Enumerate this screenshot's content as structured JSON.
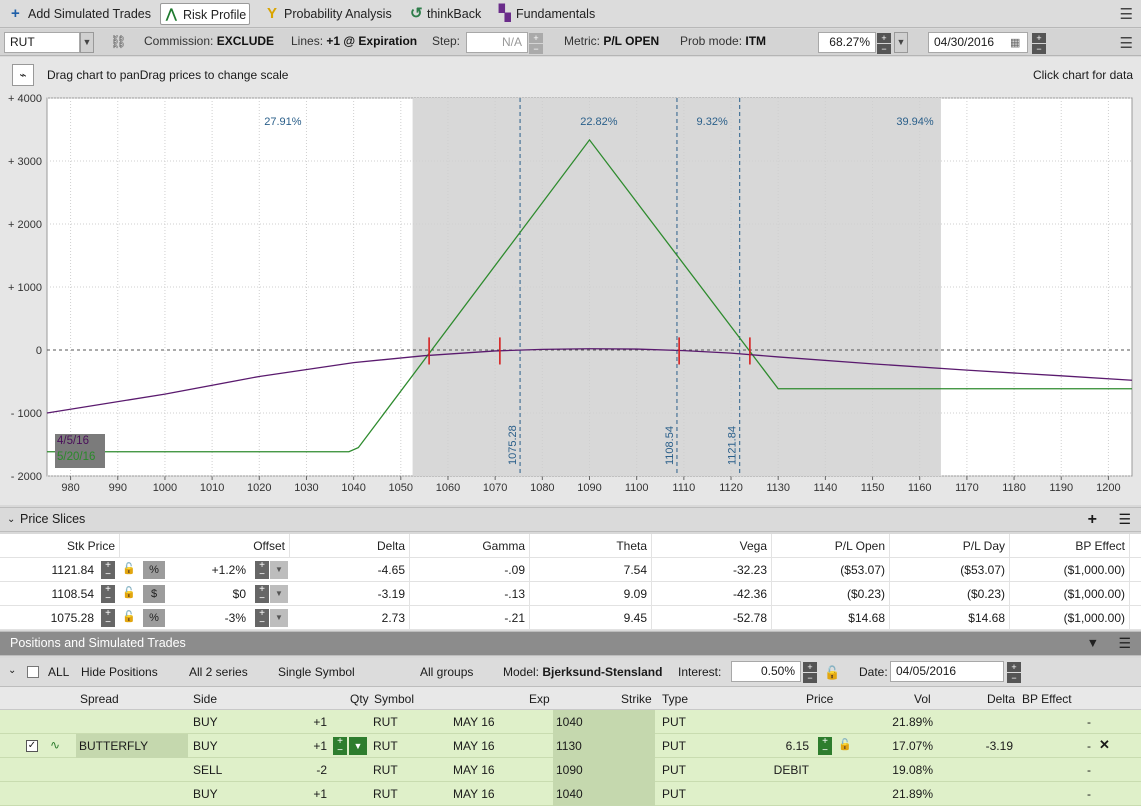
{
  "tabs": [
    {
      "label": "Add Simulated Trades",
      "icon": "plus-icon"
    },
    {
      "label": "Risk Profile",
      "icon": "risk-profile-icon",
      "active": true
    },
    {
      "label": "Probability Analysis",
      "icon": "probability-icon"
    },
    {
      "label": "thinkBack",
      "icon": "history-icon"
    },
    {
      "label": "Fundamentals",
      "icon": "fundamentals-icon"
    }
  ],
  "controls": {
    "symbol": "RUT",
    "commission_label": "Commission:",
    "commission_value": "EXCLUDE",
    "lines_label": "Lines:",
    "lines_value": "+1 @ Expiration",
    "step_label": "Step:",
    "step_value": "N/A",
    "metric_label": "Metric:",
    "metric_value": "P/L OPEN",
    "probmode_label": "Prob mode:",
    "probmode_value": "ITM",
    "percent_value": "68.27%",
    "date_value": "04/30/2016"
  },
  "chart_header": {
    "drag_text": "Drag chart to panDrag prices to change scale",
    "click_text": "Click chart for data"
  },
  "chart_data": {
    "type": "line",
    "xlim": [
      975,
      1205
    ],
    "ylim": [
      -2000,
      4000
    ],
    "x_ticks": [
      980,
      990,
      1000,
      1010,
      1020,
      1030,
      1040,
      1050,
      1060,
      1070,
      1080,
      1090,
      1100,
      1110,
      1120,
      1130,
      1140,
      1150,
      1160,
      1170,
      1180,
      1190,
      1200
    ],
    "y_ticks": [
      {
        "value": 4000,
        "label": "+ 4000"
      },
      {
        "value": 3000,
        "label": "+ 3000"
      },
      {
        "value": 2000,
        "label": "+ 2000"
      },
      {
        "value": 1000,
        "label": "+ 1000"
      },
      {
        "value": 0,
        "label": "0"
      },
      {
        "value": -1000,
        "label": "- 1000"
      },
      {
        "value": -2000,
        "label": "- 2000"
      }
    ],
    "shaded_range": [
      1052.5,
      1164.5
    ],
    "probabilities": [
      {
        "x": 1025,
        "label": "27.91%"
      },
      {
        "x": 1092,
        "label": "22.82%"
      },
      {
        "x": 1116,
        "label": "9.32%"
      },
      {
        "x": 1159,
        "label": "39.94%"
      }
    ],
    "vertical_lines": [
      {
        "x": 1075.28,
        "label": "1075.28"
      },
      {
        "x": 1108.54,
        "label": "1108.54"
      },
      {
        "x": 1121.84,
        "label": "1121.84"
      }
    ],
    "series": [
      {
        "name": "5/20/16",
        "color": "#2e8b2e",
        "points": [
          [
            975,
            -1615
          ],
          [
            1039,
            -1615
          ],
          [
            1041,
            -1550
          ],
          [
            1090,
            3335
          ],
          [
            1130,
            -615
          ],
          [
            1205,
            -615
          ]
        ]
      },
      {
        "name": "4/5/16",
        "color": "#5a1a6e",
        "points": [
          [
            975,
            -1000
          ],
          [
            1000,
            -700
          ],
          [
            1020,
            -420
          ],
          [
            1040,
            -200
          ],
          [
            1055,
            -90
          ],
          [
            1070,
            -15
          ],
          [
            1080,
            10
          ],
          [
            1090,
            20
          ],
          [
            1100,
            15
          ],
          [
            1110,
            -10
          ],
          [
            1120,
            -50
          ],
          [
            1130,
            -110
          ],
          [
            1150,
            -220
          ],
          [
            1170,
            -320
          ],
          [
            1190,
            -410
          ],
          [
            1205,
            -480
          ]
        ]
      }
    ],
    "markers": [
      1056,
      1071,
      1109,
      1124
    ]
  },
  "price_slices": {
    "title": "Price Slices",
    "columns": [
      "Stk Price",
      "Offset",
      "Delta",
      "Gamma",
      "Theta",
      "Vega",
      "P/L Open",
      "P/L Day",
      "BP Effect"
    ],
    "rows": [
      {
        "stk": "1121.84",
        "unit": "%",
        "offset": "+1.2%",
        "delta": "-4.65",
        "gamma": "-.09",
        "theta": "7.54",
        "vega": "-32.23",
        "plopen": "($53.07)",
        "plday": "($53.07)",
        "bp": "($1,000.00)"
      },
      {
        "stk": "1108.54",
        "unit": "$",
        "offset": "$0",
        "delta": "-3.19",
        "gamma": "-.13",
        "theta": "9.09",
        "vega": "-42.36",
        "plopen": "($0.23)",
        "plday": "($0.23)",
        "bp": "($1,000.00)"
      },
      {
        "stk": "1075.28",
        "unit": "%",
        "offset": "-3%",
        "delta": "2.73",
        "gamma": "-.21",
        "theta": "9.45",
        "vega": "-52.78",
        "plopen": "$14.68",
        "plday": "$14.68",
        "bp": "($1,000.00)"
      }
    ]
  },
  "positions": {
    "title": "Positions and Simulated Trades",
    "filters": {
      "all_label": "ALL",
      "hide": "Hide Positions",
      "series": "All 2 series",
      "symbol": "Single Symbol",
      "groups": "All groups",
      "model_label": "Model:",
      "model_value": "Bjerksund-Stensland",
      "interest_label": "Interest:",
      "interest_value": "0.50%",
      "date_label": "Date:",
      "date_value": "04/05/2016"
    },
    "columns": [
      "Spread",
      "Side",
      "Qty",
      "Symbol",
      "Exp",
      "Strike",
      "Type",
      "Price",
      "Vol",
      "Delta",
      "BP Effect"
    ],
    "rows": [
      {
        "spread": "",
        "side": "BUY",
        "qty": "+1",
        "symbol": "RUT",
        "exp": "MAY 16",
        "strike": "1040",
        "type": "PUT",
        "price": "",
        "vol": "21.89%",
        "delta": "",
        "bp": "-"
      },
      {
        "spread": "BUTTERFLY",
        "side": "BUY",
        "qty": "+1",
        "symbol": "RUT",
        "exp": "MAY 16",
        "strike": "1130",
        "type": "PUT",
        "price": "6.15",
        "vol": "17.07%",
        "delta": "-3.19",
        "bp": "-",
        "main": true
      },
      {
        "spread": "",
        "side": "SELL",
        "qty": "-2",
        "symbol": "RUT",
        "exp": "MAY 16",
        "strike": "1090",
        "type": "PUT",
        "price": "DEBIT",
        "vol": "19.08%",
        "delta": "",
        "bp": "-"
      },
      {
        "spread": "",
        "side": "BUY",
        "qty": "+1",
        "symbol": "RUT",
        "exp": "MAY 16",
        "strike": "1040",
        "type": "PUT",
        "price": "",
        "vol": "21.89%",
        "delta": "",
        "bp": "-"
      }
    ]
  }
}
